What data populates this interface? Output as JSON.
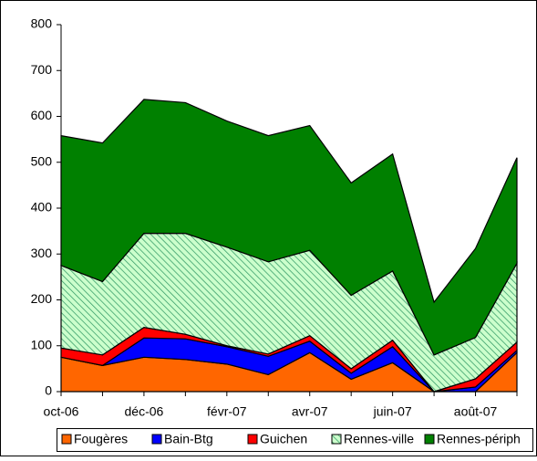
{
  "chart_data": {
    "type": "stacked_area",
    "categories": [
      "oct-06",
      null,
      "déc-06",
      null,
      "févr-07",
      null,
      "avr-07",
      null,
      "juin-07",
      null,
      "août-07",
      null
    ],
    "series": [
      {
        "name": "Fougères",
        "color": "#ff6600",
        "values": [
          75,
          57,
          75,
          70,
          60,
          37,
          85,
          27,
          63,
          0,
          0,
          85
        ]
      },
      {
        "name": "Bain-Btg",
        "color": "#0000ff",
        "values": [
          0,
          0,
          42,
          45,
          38,
          40,
          25,
          13,
          35,
          0,
          10,
          5
        ]
      },
      {
        "name": "Guichen",
        "color": "#ff0000",
        "values": [
          20,
          23,
          23,
          10,
          2,
          5,
          12,
          10,
          14,
          0,
          18,
          18
        ]
      },
      {
        "name": "Rennes-ville",
        "color": "#ccffcc",
        "values": [
          180,
          160,
          205,
          220,
          215,
          201,
          186,
          160,
          151,
          80,
          90,
          172
        ]
      },
      {
        "name": "Rennes-périph",
        "color": "#008000",
        "values": [
          283,
          302,
          292,
          285,
          275,
          275,
          272,
          245,
          255,
          115,
          194,
          230
        ]
      }
    ],
    "ylim": [
      0,
      800
    ],
    "yticks": [
      0,
      100,
      200,
      300,
      400,
      500,
      600,
      700,
      800
    ],
    "legend": "bottom"
  }
}
